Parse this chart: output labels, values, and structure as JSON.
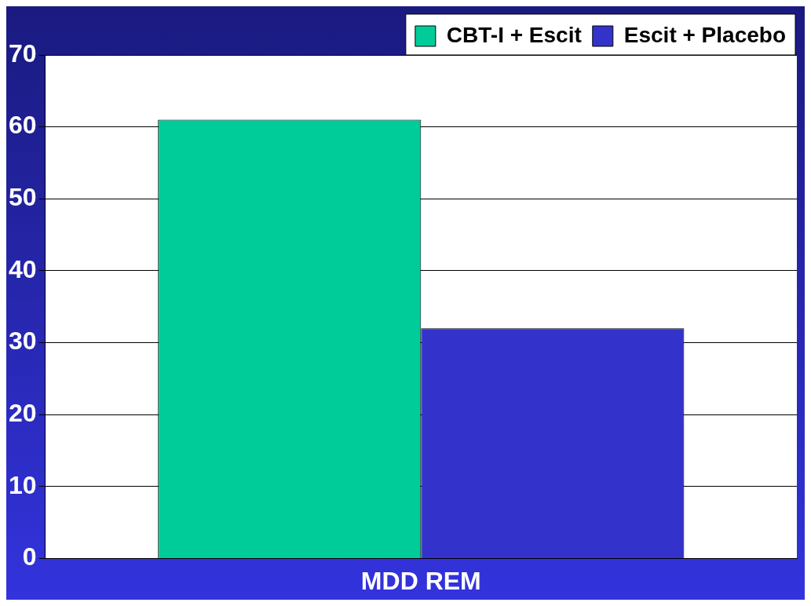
{
  "chart_data": {
    "type": "bar",
    "categories": [
      "MDD REM"
    ],
    "series": [
      {
        "name": "CBT-I + Escit",
        "color": "#00cc99",
        "values": [
          61
        ]
      },
      {
        "name": "Escit + Placebo",
        "color": "#3333cc",
        "values": [
          32
        ]
      }
    ],
    "ylim": [
      0,
      70
    ],
    "yticks": [
      0,
      10,
      20,
      30,
      40,
      50,
      60,
      70
    ],
    "grid": "y",
    "legend": "top right"
  }
}
